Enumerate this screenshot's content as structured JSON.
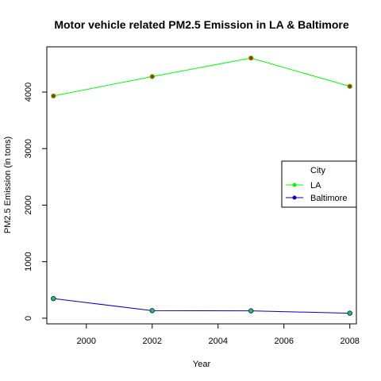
{
  "chart_data": {
    "type": "line",
    "title": "Motor vehicle related PM2.5 Emission in LA & Baltimore",
    "xlabel": "Year",
    "ylabel": "PM2.5 Emission (in tons)",
    "x": [
      1999,
      2002,
      2005,
      2008
    ],
    "xlim": [
      1998.8,
      2008.2
    ],
    "ylim": [
      -100,
      4800
    ],
    "xticks": [
      2000,
      2002,
      2004,
      2006,
      2008
    ],
    "yticks": [
      0,
      1000,
      2000,
      3000,
      4000
    ],
    "series": [
      {
        "name": "LA",
        "values": [
          3931,
          4274,
          4601,
          4101
        ],
        "line_color": "#00ff00",
        "point_color": "#cc2200"
      },
      {
        "name": "Baltimore",
        "values": [
          347,
          134,
          130,
          88
        ],
        "line_color": "#0000cc",
        "point_color": "#22cc22"
      }
    ],
    "legend": {
      "title": "City",
      "position": "right",
      "entries": [
        {
          "label": "LA",
          "color": "#00ff00"
        },
        {
          "label": "Baltimore",
          "color": "#0000cc"
        }
      ]
    },
    "grid": false
  }
}
